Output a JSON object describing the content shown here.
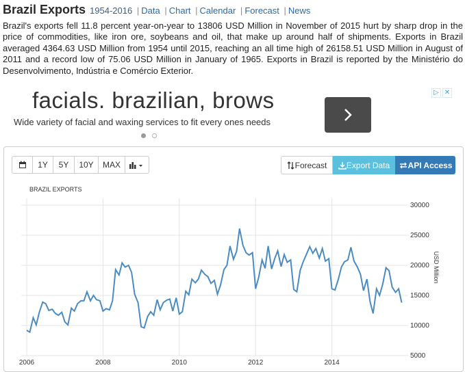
{
  "header": {
    "title": "Brazil Exports",
    "period": "1954-2016",
    "nav": [
      "Data",
      "Chart",
      "Calendar",
      "Forecast",
      "News"
    ]
  },
  "description": "Brazil's exports fell 11.8 percent year-on-year to 13806 USD Million in November of 2015 hurt by sharp drop in the price of commodities, like iron ore, soybeans and oil, that make up around half of shipments. Exports in Brazil averaged 4364.63 USD Million from 1954 until 2015, reaching an all time high of 26158.51 USD Million in August of 2011 and a record low of 75.06 USD Million in January of 1965. Exports in Brazil is reported by the Ministério do Desenvolvimento, Indústria e Comércio Exterior.",
  "ad": {
    "title": "facials. brazilian, brows",
    "subtitle": "Wide variety of facial and waxing services to fit every ones needs",
    "close_glyphs": [
      "▷",
      "✕"
    ]
  },
  "toolbar": {
    "range_buttons": [
      "1Y",
      "5Y",
      "10Y",
      "MAX"
    ],
    "forecast_label": "Forecast",
    "export_label": "Export Data",
    "api_label": "API Access"
  },
  "colors": {
    "line": "#4a8bc2",
    "export_btn": "#5bc0de",
    "api_btn": "#337ab7"
  },
  "chart_data": {
    "type": "line",
    "title": "BRAZIL EXPORTS",
    "ylabel": "USD Million",
    "ylim": [
      5000,
      30000
    ],
    "xlim": [
      2006,
      2016
    ],
    "yticks": [
      5000,
      10000,
      15000,
      20000,
      25000,
      30000
    ],
    "xticks": [
      2006,
      2008,
      2010,
      2012,
      2014
    ],
    "grid": true,
    "series": [
      {
        "x": [
          2006.0,
          2006.08,
          2006.17,
          2006.25,
          2006.33,
          2006.42,
          2006.5,
          2006.58,
          2006.67,
          2006.75,
          2006.83,
          2006.92,
          2007.0,
          2007.08,
          2007.17,
          2007.25,
          2007.33,
          2007.42,
          2007.5,
          2007.58,
          2007.67,
          2007.75,
          2007.83,
          2007.92,
          2008.0,
          2008.08,
          2008.17,
          2008.25,
          2008.33,
          2008.42,
          2008.5,
          2008.58,
          2008.67,
          2008.75,
          2008.83,
          2008.92,
          2009.0,
          2009.08,
          2009.17,
          2009.25,
          2009.33,
          2009.42,
          2009.5,
          2009.58,
          2009.67,
          2009.75,
          2009.83,
          2009.92,
          2010.0,
          2010.08,
          2010.17,
          2010.25,
          2010.33,
          2010.42,
          2010.5,
          2010.58,
          2010.67,
          2010.75,
          2010.83,
          2010.92,
          2011.0,
          2011.08,
          2011.17,
          2011.25,
          2011.33,
          2011.42,
          2011.5,
          2011.58,
          2011.67,
          2011.75,
          2011.83,
          2011.92,
          2012.0,
          2012.08,
          2012.17,
          2012.25,
          2012.33,
          2012.42,
          2012.5,
          2012.58,
          2012.67,
          2012.75,
          2012.83,
          2012.92,
          2013.0,
          2013.08,
          2013.17,
          2013.25,
          2013.33,
          2013.42,
          2013.5,
          2013.58,
          2013.67,
          2013.75,
          2013.83,
          2013.92,
          2014.0,
          2014.08,
          2014.17,
          2014.25,
          2014.33,
          2014.42,
          2014.5,
          2014.58,
          2014.67,
          2014.75,
          2014.83,
          2014.92,
          2015.0,
          2015.08,
          2015.17,
          2015.25,
          2015.33,
          2015.42,
          2015.5,
          2015.58,
          2015.67,
          2015.75,
          2015.83
        ],
        "y": [
          9200,
          8900,
          11300,
          10100,
          12200,
          13900,
          13600,
          12500,
          12700,
          12000,
          11700,
          12200,
          10600,
          10100,
          12900,
          12400,
          13600,
          14100,
          14100,
          15600,
          14100,
          15000,
          14300,
          14100,
          12400,
          12800,
          12600,
          14100,
          19300,
          18400,
          20400,
          19700,
          20000,
          18800,
          15200,
          13800,
          9800,
          9600,
          11500,
          12300,
          11700,
          14300,
          12600,
          13800,
          14200,
          14400,
          12400,
          14600,
          11900,
          12300,
          15700,
          15100,
          17700,
          17100,
          17700,
          19200,
          18500,
          18100,
          17000,
          17500,
          15200,
          16700,
          19300,
          20000,
          23200,
          21000,
          22300,
          26100,
          23300,
          22100,
          21700,
          22100,
          16100,
          18000,
          20900,
          19500,
          23200,
          19400,
          21100,
          22400,
          19800,
          21800,
          20500,
          20900,
          16000,
          15600,
          19200,
          20600,
          21800,
          23100,
          22000,
          22800,
          21200,
          22800,
          20700,
          21100,
          16100,
          15900,
          17700,
          19700,
          20600,
          20900,
          23000,
          20700,
          19700,
          18500,
          15800,
          17700,
          14000,
          12000,
          16100,
          15000,
          16800,
          19600,
          19100,
          16400,
          15500,
          16100,
          13800
        ]
      }
    ]
  }
}
